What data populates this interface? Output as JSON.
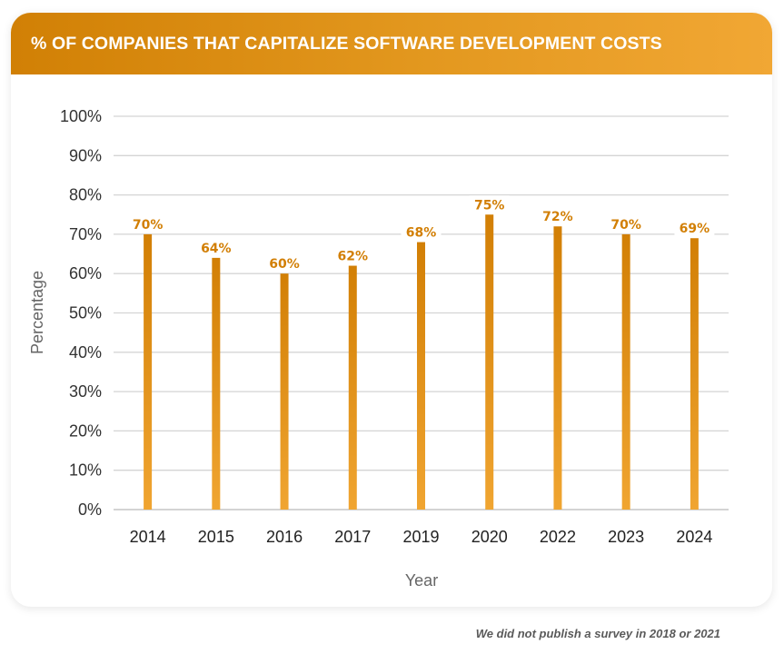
{
  "chart_data": {
    "type": "bar",
    "title": "%  OF COMPANIES THAT CAPITALIZE SOFTWARE DEVELOPMENT COSTS",
    "xlabel": "Year",
    "ylabel": "Percentage",
    "categories": [
      "2014",
      "2015",
      "2016",
      "2017",
      "2019",
      "2020",
      "2022",
      "2023",
      "2024"
    ],
    "values": [
      70,
      64,
      60,
      62,
      68,
      75,
      72,
      70,
      69
    ],
    "data_labels": [
      "70%",
      "64%",
      "60%",
      "62%",
      "68%",
      "75%",
      "72%",
      "70%",
      "69%"
    ],
    "ylim": [
      0,
      100
    ],
    "yticks": [
      0,
      10,
      20,
      30,
      40,
      50,
      60,
      70,
      80,
      90,
      100
    ],
    "ytick_labels": [
      "0%",
      "10%",
      "20%",
      "30%",
      "40%",
      "50%",
      "60%",
      "70%",
      "80%",
      "90%",
      "100%"
    ],
    "grid": true,
    "legend": "none",
    "colors": {
      "bar_top": "#d27f05",
      "bar_bottom": "#f0a531",
      "label": "#d27f05",
      "gridline": "#d4d4d4",
      "header_start": "#d18005",
      "header_end": "#f1a734"
    }
  },
  "footnote": "We did not publish a survey in 2018 or 2021"
}
